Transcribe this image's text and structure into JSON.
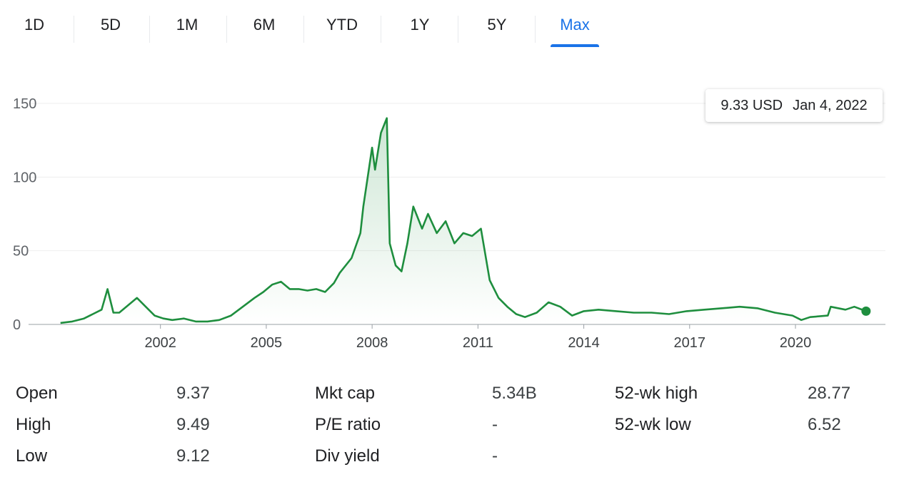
{
  "tabs": [
    {
      "label": "1D",
      "active": false
    },
    {
      "label": "5D",
      "active": false
    },
    {
      "label": "1M",
      "active": false
    },
    {
      "label": "6M",
      "active": false
    },
    {
      "label": "YTD",
      "active": false
    },
    {
      "label": "1Y",
      "active": false
    },
    {
      "label": "5Y",
      "active": false
    },
    {
      "label": "Max",
      "active": true
    }
  ],
  "tooltip": {
    "price": "9.33 USD",
    "date": "Jan 4, 2022"
  },
  "colors": {
    "line": "#1e8e3e",
    "accent": "#1a73e8",
    "grid": "#eeeeee"
  },
  "chart_data": {
    "type": "area",
    "title": "",
    "xlabel": "",
    "ylabel": "",
    "ylim": [
      0,
      150
    ],
    "xlim": [
      "1999-03",
      "2022-01"
    ],
    "yticks": [
      0,
      50,
      100,
      150
    ],
    "xticks": [
      "2002",
      "2005",
      "2008",
      "2011",
      "2014",
      "2017",
      "2020"
    ],
    "grid": true,
    "series": [
      {
        "x": [
          "1999-03",
          "1999-07",
          "1999-11",
          "2000-02",
          "2000-05",
          "2000-07",
          "2000-09",
          "2000-11",
          "2001-02",
          "2001-05",
          "2001-08",
          "2001-11",
          "2002-02",
          "2002-05",
          "2002-09",
          "2003-01",
          "2003-05",
          "2003-09",
          "2004-01",
          "2004-05",
          "2004-09",
          "2004-12",
          "2005-03",
          "2005-06",
          "2005-09",
          "2005-12",
          "2006-03",
          "2006-06",
          "2006-09",
          "2006-12",
          "2007-02",
          "2007-06",
          "2007-09",
          "2007-10",
          "2008-01",
          "2008-02",
          "2008-04",
          "2008-06",
          "2008-07",
          "2008-09",
          "2008-11",
          "2009-01",
          "2009-03",
          "2009-04",
          "2009-06",
          "2009-08",
          "2009-11",
          "2010-02",
          "2010-05",
          "2010-08",
          "2010-11",
          "2011-02",
          "2011-05",
          "2011-08",
          "2011-11",
          "2012-02",
          "2012-05",
          "2012-09",
          "2013-01",
          "2013-05",
          "2013-09",
          "2014-01",
          "2014-06",
          "2014-12",
          "2015-06",
          "2015-12",
          "2016-06",
          "2016-12",
          "2017-06",
          "2017-12",
          "2018-06",
          "2018-12",
          "2019-06",
          "2019-12",
          "2020-03",
          "2020-06",
          "2020-12",
          "2021-01",
          "2021-06",
          "2021-09",
          "2022-01"
        ],
        "y": [
          1,
          2,
          4,
          7,
          10,
          24,
          8,
          8,
          13,
          18,
          12,
          6,
          4,
          3,
          4,
          2,
          2,
          3,
          6,
          12,
          18,
          22,
          27,
          29,
          24,
          24,
          23,
          24,
          22,
          28,
          35,
          45,
          62,
          80,
          120,
          105,
          130,
          140,
          55,
          40,
          36,
          55,
          80,
          75,
          65,
          75,
          62,
          70,
          55,
          62,
          60,
          65,
          30,
          18,
          12,
          7,
          5,
          8,
          15,
          12,
          6,
          9,
          10,
          9,
          8,
          8,
          7,
          9,
          10,
          11,
          12,
          11,
          8,
          6,
          3,
          5,
          6,
          12,
          10,
          12,
          9
        ]
      }
    ]
  },
  "stats": {
    "open_label": "Open",
    "open_value": "9.37",
    "high_label": "High",
    "high_value": "9.49",
    "low_label": "Low",
    "low_value": "9.12",
    "mktcap_label": "Mkt cap",
    "mktcap_value": "5.34B",
    "pe_label": "P/E ratio",
    "pe_value": "-",
    "div_label": "Div yield",
    "div_value": "-",
    "wk52high_label": "52-wk high",
    "wk52high_value": "28.77",
    "wk52low_label": "52-wk low",
    "wk52low_value": "6.52"
  }
}
